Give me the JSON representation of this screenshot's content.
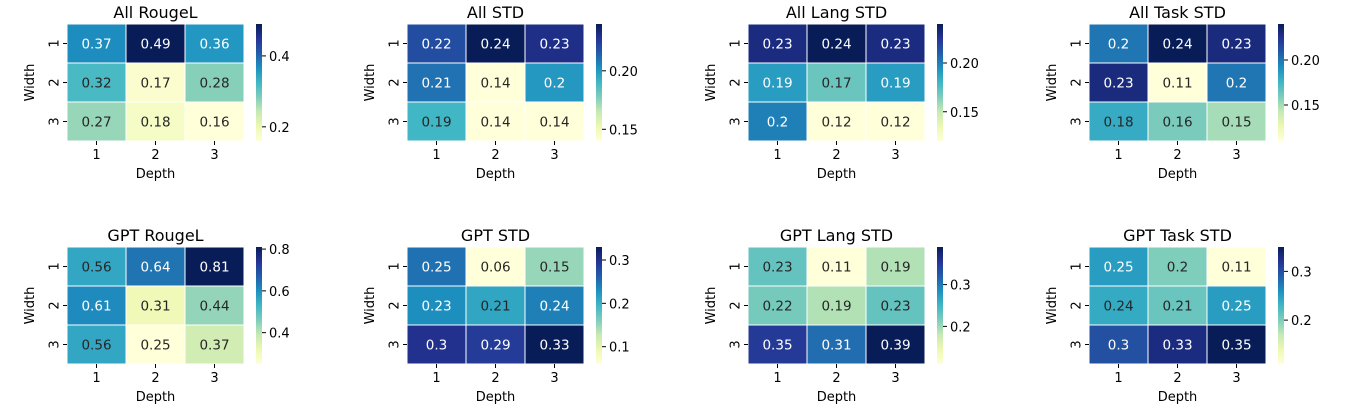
{
  "chart_data": [
    {
      "type": "heatmap",
      "title": "All RougeL",
      "xlabel": "Depth",
      "ylabel": "Width",
      "x_categories": [
        "1",
        "2",
        "3"
      ],
      "y_categories": [
        "1",
        "2",
        "3"
      ],
      "values": [
        [
          0.37,
          0.49,
          0.36
        ],
        [
          0.32,
          0.17,
          0.28
        ],
        [
          0.27,
          0.18,
          0.16
        ]
      ],
      "cell_labels": [
        [
          "0.37",
          "0.49",
          "0.36"
        ],
        [
          "0.32",
          "0.17",
          "0.28"
        ],
        [
          "0.27",
          "0.18",
          "0.16"
        ]
      ],
      "vmin": 0.16,
      "vmax": 0.49,
      "colorbar_ticks": [
        0.2,
        0.4
      ],
      "colorbar_tick_labels": [
        "0.2",
        "0.4"
      ],
      "colormap": "YlGnBu"
    },
    {
      "type": "heatmap",
      "title": "All STD",
      "xlabel": "Depth",
      "ylabel": "Width",
      "x_categories": [
        "1",
        "2",
        "3"
      ],
      "y_categories": [
        "1",
        "2",
        "3"
      ],
      "values": [
        [
          0.22,
          0.24,
          0.23
        ],
        [
          0.21,
          0.14,
          0.2
        ],
        [
          0.19,
          0.14,
          0.14
        ]
      ],
      "cell_labels": [
        [
          "0.22",
          "0.24",
          "0.23"
        ],
        [
          "0.21",
          "0.14",
          "0.2"
        ],
        [
          "0.19",
          "0.14",
          "0.14"
        ]
      ],
      "vmin": 0.14,
      "vmax": 0.24,
      "colorbar_ticks": [
        0.15,
        0.2
      ],
      "colorbar_tick_labels": [
        "0.15",
        "0.20"
      ],
      "colormap": "YlGnBu"
    },
    {
      "type": "heatmap",
      "title": "All Lang STD",
      "xlabel": "Depth",
      "ylabel": "Width",
      "x_categories": [
        "1",
        "2",
        "3"
      ],
      "y_categories": [
        "1",
        "2",
        "3"
      ],
      "values": [
        [
          0.23,
          0.24,
          0.23
        ],
        [
          0.19,
          0.17,
          0.19
        ],
        [
          0.2,
          0.12,
          0.12
        ]
      ],
      "cell_labels": [
        [
          "0.23",
          "0.24",
          "0.23"
        ],
        [
          "0.19",
          "0.17",
          "0.19"
        ],
        [
          "0.2",
          "0.12",
          "0.12"
        ]
      ],
      "vmin": 0.12,
      "vmax": 0.24,
      "colorbar_ticks": [
        0.15,
        0.2
      ],
      "colorbar_tick_labels": [
        "0.15",
        "0.20"
      ],
      "colormap": "YlGnBu"
    },
    {
      "type": "heatmap",
      "title": "All Task STD",
      "xlabel": "Depth",
      "ylabel": "Width",
      "x_categories": [
        "1",
        "2",
        "3"
      ],
      "y_categories": [
        "1",
        "2",
        "3"
      ],
      "values": [
        [
          0.2,
          0.24,
          0.23
        ],
        [
          0.23,
          0.11,
          0.2
        ],
        [
          0.18,
          0.16,
          0.15
        ]
      ],
      "cell_labels": [
        [
          "0.2",
          "0.24",
          "0.23"
        ],
        [
          "0.23",
          "0.11",
          "0.2"
        ],
        [
          "0.18",
          "0.16",
          "0.15"
        ]
      ],
      "vmin": 0.11,
      "vmax": 0.24,
      "colorbar_ticks": [
        0.15,
        0.2
      ],
      "colorbar_tick_labels": [
        "0.15",
        "0.20"
      ],
      "colormap": "YlGnBu"
    },
    {
      "type": "heatmap",
      "title": "GPT RougeL",
      "xlabel": "Depth",
      "ylabel": "Width",
      "x_categories": [
        "1",
        "2",
        "3"
      ],
      "y_categories": [
        "1",
        "2",
        "3"
      ],
      "values": [
        [
          0.56,
          0.64,
          0.81
        ],
        [
          0.61,
          0.31,
          0.44
        ],
        [
          0.56,
          0.25,
          0.37
        ]
      ],
      "cell_labels": [
        [
          "0.56",
          "0.64",
          "0.81"
        ],
        [
          "0.61",
          "0.31",
          "0.44"
        ],
        [
          "0.56",
          "0.25",
          "0.37"
        ]
      ],
      "vmin": 0.25,
      "vmax": 0.81,
      "colorbar_ticks": [
        0.4,
        0.6,
        0.8
      ],
      "colorbar_tick_labels": [
        "0.4",
        "0.6",
        "0.8"
      ],
      "colormap": "YlGnBu"
    },
    {
      "type": "heatmap",
      "title": "GPT STD",
      "xlabel": "Depth",
      "ylabel": "Width",
      "x_categories": [
        "1",
        "2",
        "3"
      ],
      "y_categories": [
        "1",
        "2",
        "3"
      ],
      "values": [
        [
          0.25,
          0.06,
          0.15
        ],
        [
          0.23,
          0.21,
          0.24
        ],
        [
          0.3,
          0.29,
          0.33
        ]
      ],
      "cell_labels": [
        [
          "0.25",
          "0.06",
          "0.15"
        ],
        [
          "0.23",
          "0.21",
          "0.24"
        ],
        [
          "0.3",
          "0.29",
          "0.33"
        ]
      ],
      "vmin": 0.06,
      "vmax": 0.33,
      "colorbar_ticks": [
        0.1,
        0.2,
        0.3
      ],
      "colorbar_tick_labels": [
        "0.1",
        "0.2",
        "0.3"
      ],
      "colormap": "YlGnBu"
    },
    {
      "type": "heatmap",
      "title": "GPT Lang STD",
      "xlabel": "Depth",
      "ylabel": "Width",
      "x_categories": [
        "1",
        "2",
        "3"
      ],
      "y_categories": [
        "1",
        "2",
        "3"
      ],
      "values": [
        [
          0.23,
          0.11,
          0.19
        ],
        [
          0.22,
          0.19,
          0.23
        ],
        [
          0.35,
          0.31,
          0.39
        ]
      ],
      "cell_labels": [
        [
          "0.23",
          "0.11",
          "0.19"
        ],
        [
          "0.22",
          "0.19",
          "0.23"
        ],
        [
          "0.35",
          "0.31",
          "0.39"
        ]
      ],
      "vmin": 0.11,
      "vmax": 0.39,
      "colorbar_ticks": [
        0.2,
        0.3
      ],
      "colorbar_tick_labels": [
        "0.2",
        "0.3"
      ],
      "colormap": "YlGnBu"
    },
    {
      "type": "heatmap",
      "title": "GPT Task STD",
      "xlabel": "Depth",
      "ylabel": "Width",
      "x_categories": [
        "1",
        "2",
        "3"
      ],
      "y_categories": [
        "1",
        "2",
        "3"
      ],
      "values": [
        [
          0.25,
          0.2,
          0.11
        ],
        [
          0.24,
          0.21,
          0.25
        ],
        [
          0.3,
          0.33,
          0.35
        ]
      ],
      "cell_labels": [
        [
          "0.25",
          "0.2",
          "0.11"
        ],
        [
          "0.24",
          "0.21",
          "0.25"
        ],
        [
          "0.3",
          "0.33",
          "0.35"
        ]
      ],
      "vmin": 0.11,
      "vmax": 0.35,
      "colorbar_ticks": [
        0.2,
        0.3
      ],
      "colorbar_tick_labels": [
        "0.2",
        "0.3"
      ],
      "colormap": "YlGnBu"
    }
  ]
}
